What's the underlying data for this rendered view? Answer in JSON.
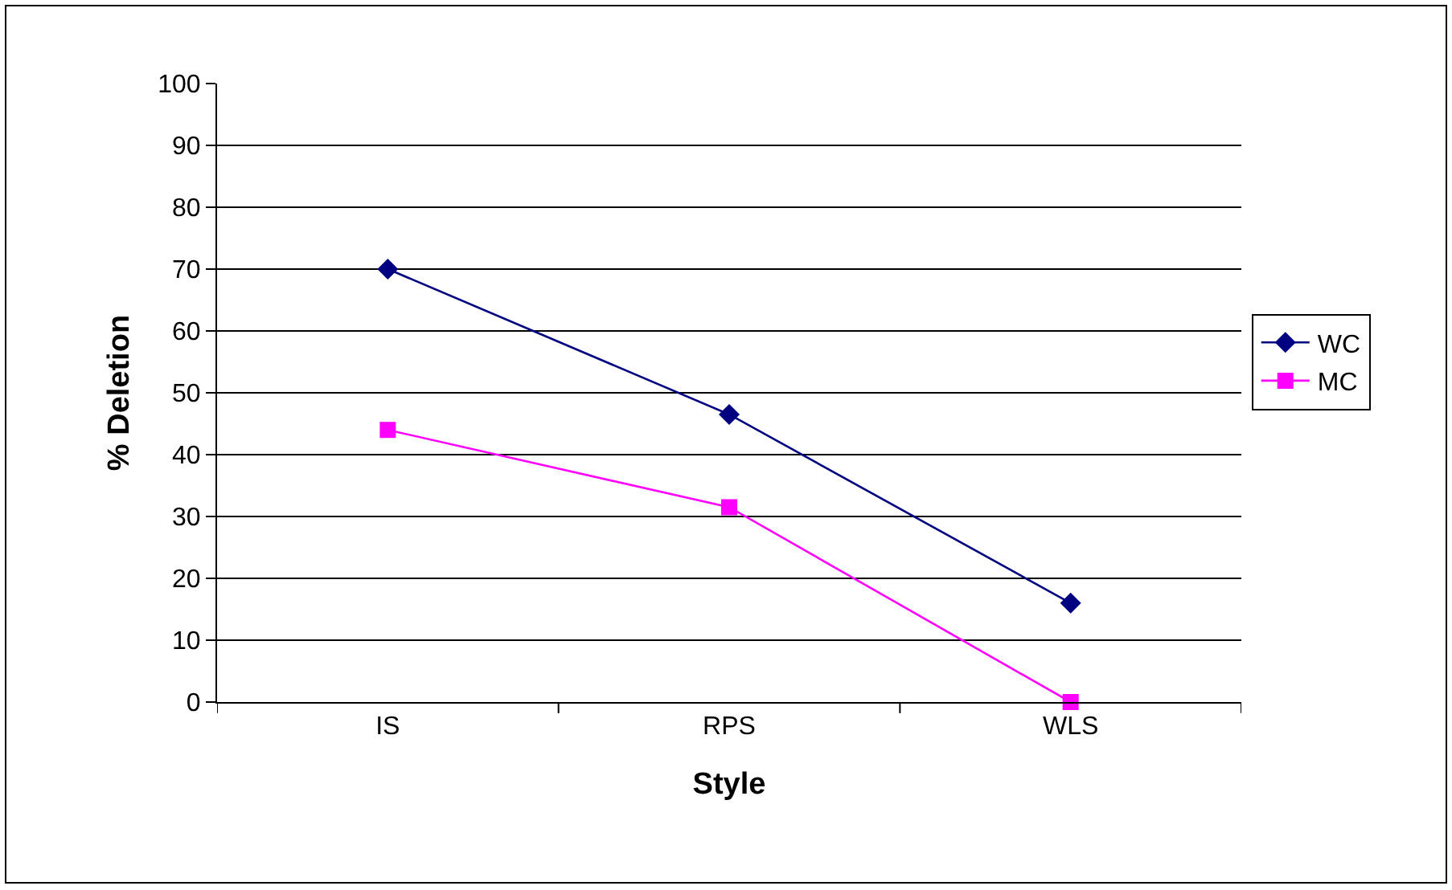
{
  "chart_data": {
    "type": "line",
    "xlabel": "Style",
    "ylabel": "% Deletion",
    "categories": [
      "IS",
      "RPS",
      "WLS"
    ],
    "series": [
      {
        "name": "WC",
        "color": "#000080",
        "marker": "diamond",
        "values": [
          70,
          46.5,
          16
        ]
      },
      {
        "name": "MC",
        "color": "#ff00ff",
        "marker": "square",
        "values": [
          44,
          31.5,
          0
        ]
      }
    ],
    "ylim": [
      0,
      100
    ],
    "yticks": [
      0,
      10,
      20,
      30,
      40,
      50,
      60,
      70,
      80,
      90,
      100
    ],
    "grid": "y",
    "legend": "right",
    "line_style": "solid"
  }
}
